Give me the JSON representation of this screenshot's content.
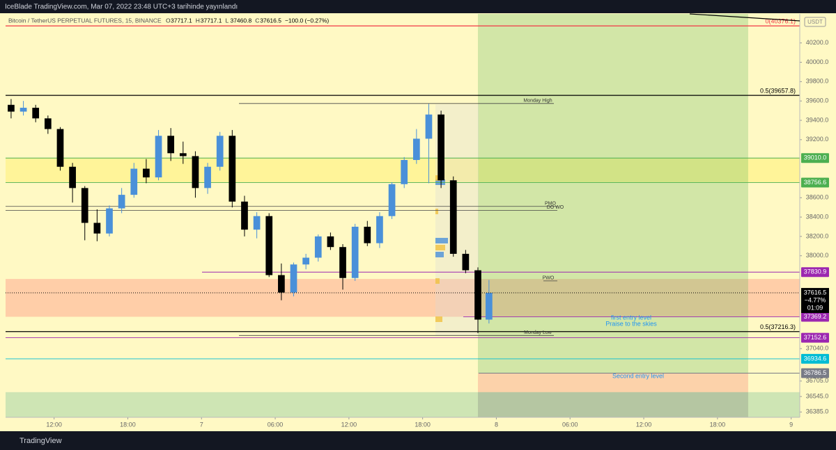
{
  "header": {
    "publisher": "IceBlade TradingView.com, Mar 07, 2022 23:48 UTC+3 tarihinde yayınlandı"
  },
  "footer": {
    "brand": "TradingView"
  },
  "chart_data": {
    "type": "candlestick",
    "title": "Bitcoin / TetherUS PERPETUAL FUTURES, 15, BINANCE",
    "ohlc": [
      {
        "label": "O",
        "value": 37717.1
      },
      {
        "label": "H",
        "value": 37717.1
      },
      {
        "label": "L",
        "value": 37460.8
      },
      {
        "label": "C",
        "value": 37616.5
      }
    ],
    "change": "−100.0 (−0.27%)",
    "currency": "USDT",
    "up_color": "#4a90d9",
    "down_color": "#000000",
    "x": [
      8.5,
      9.5,
      10.5,
      11.5,
      12.5,
      13.5,
      14.5,
      15.5,
      16.5,
      17.5,
      18.5,
      19.5,
      20.5,
      21.5,
      22.5,
      23.5,
      24.5,
      25.5,
      26.5,
      27.5,
      28.5,
      29.5,
      30.5,
      31.5,
      32.5,
      33.5,
      34.5,
      35.5,
      36.5,
      37.5,
      38.5,
      39.5,
      40.5,
      41.5,
      42.5,
      43.5,
      44.5,
      45.5,
      46.5,
      47.4
    ],
    "open": [
      39560,
      39490,
      39530,
      39420,
      39310,
      38920,
      38700,
      38340,
      38230,
      38490,
      38630,
      38900,
      38810,
      39240,
      39060,
      39030,
      38700,
      38920,
      39240,
      38560,
      38270,
      38410,
      37800,
      37620,
      37910,
      37980,
      38200,
      38090,
      37770,
      38300,
      38130,
      38410,
      38740,
      38990,
      39210,
      39460,
      38780,
      38020,
      37850,
      37340
    ],
    "high": [
      39620,
      39600,
      39560,
      39450,
      39330,
      38960,
      38720,
      38480,
      38520,
      38700,
      38960,
      39000,
      39300,
      39320,
      39180,
      39080,
      38960,
      39280,
      39300,
      38620,
      38450,
      38440,
      37920,
      37930,
      38020,
      38220,
      38240,
      38120,
      38330,
      38360,
      38450,
      38760,
      39020,
      39310,
      39570,
      39500,
      38820,
      38060,
      37880,
      37750
    ],
    "low": [
      39420,
      39450,
      39380,
      39260,
      38880,
      38550,
      38160,
      38150,
      38200,
      38440,
      38600,
      38750,
      38780,
      38980,
      38950,
      38600,
      38640,
      38880,
      38500,
      38200,
      38180,
      37780,
      37540,
      37580,
      37860,
      37940,
      38060,
      37650,
      37740,
      38100,
      38080,
      38380,
      38700,
      38950,
      38750,
      38700,
      37990,
      37820,
      37200,
      37300
    ],
    "close": [
      39490,
      39530,
      39420,
      39310,
      38920,
      38700,
      38340,
      38230,
      38490,
      38630,
      38900,
      38810,
      39240,
      39060,
      39030,
      38700,
      38920,
      39240,
      38560,
      38270,
      38410,
      37800,
      37620,
      37910,
      37980,
      38200,
      38090,
      37770,
      38300,
      38130,
      38410,
      38740,
      38990,
      39210,
      39460,
      38780,
      38020,
      37850,
      37340,
      37616.5
    ],
    "xlim": [
      8.05,
      72.7
    ],
    "xticks": [
      {
        "value": 12,
        "label": "12:00"
      },
      {
        "value": 18,
        "label": "18:00"
      },
      {
        "value": 24,
        "label": "7"
      },
      {
        "value": 30,
        "label": "06:00"
      },
      {
        "value": 36,
        "label": "12:00"
      },
      {
        "value": 42,
        "label": "18:00"
      },
      {
        "value": 48,
        "label": "8"
      },
      {
        "value": 54,
        "label": "06:00"
      },
      {
        "value": 60,
        "label": "12:00"
      },
      {
        "value": 66,
        "label": "18:00"
      },
      {
        "value": 72,
        "label": "9"
      }
    ],
    "ylim": [
      36330,
      40500
    ],
    "yticks": [
      {
        "value": 40200,
        "label": "40200.0"
      },
      {
        "value": 40000,
        "label": "40000.0"
      },
      {
        "value": 39800,
        "label": "39800.0"
      },
      {
        "value": 39600,
        "label": "39600.0"
      },
      {
        "value": 39400,
        "label": "39400.0"
      },
      {
        "value": 39200,
        "label": "39200.0"
      },
      {
        "value": 38600,
        "label": "38600.0"
      },
      {
        "value": 38400,
        "label": "38400.0"
      },
      {
        "value": 38200,
        "label": "38200.0"
      },
      {
        "value": 38000,
        "label": "38000.0"
      },
      {
        "value": 37040,
        "label": "37040.0"
      },
      {
        "value": 36705,
        "label": "36705.0"
      },
      {
        "value": 36545,
        "label": "36545.0"
      },
      {
        "value": 36385,
        "label": "36385.0"
      }
    ],
    "fib_levels": [
      {
        "value": 40376.1,
        "label": "0(40376.1)",
        "color": "#f23645"
      },
      {
        "value": 39657.8,
        "label": "0.5(39657.8)",
        "color": "#000000"
      },
      {
        "value": 37216.3,
        "label": "0.5(37216.3)",
        "color": "#000000"
      }
    ],
    "price_tags": [
      {
        "value": 39010.0,
        "label": "39010.0",
        "color": "#4caf50"
      },
      {
        "value": 38756.6,
        "label": "38756.6",
        "color": "#4caf50"
      },
      {
        "value": 37830.9,
        "label": "37830.9",
        "color": "#9c27b0"
      },
      {
        "value": 37369.2,
        "label": "37369.2",
        "color": "#9c27b0"
      },
      {
        "value": 37152.6,
        "label": "37152.6",
        "color": "#9c27b0"
      },
      {
        "value": 36934.6,
        "label": "36934.6",
        "color": "#00bcd4"
      },
      {
        "value": 36786.5,
        "label": "36786.5",
        "color": "#787b86"
      }
    ],
    "last_price": {
      "value": 37616.5,
      "label": "37616.5",
      "change": "−4.77%",
      "countdown": "01:09"
    },
    "drawn_levels": [
      {
        "value": 39574,
        "label": "Monday High"
      },
      {
        "value": 37176,
        "label": "Monday Low"
      },
      {
        "value": 38510,
        "label": "PMO"
      },
      {
        "value": 38470,
        "label": "DO  WO"
      },
      {
        "value": 37740,
        "label": "PWO"
      }
    ],
    "zones": [
      {
        "top": 39010.0,
        "bottom": 38756.6,
        "color": "#fff176"
      },
      {
        "top": 37760,
        "bottom": 37369.2,
        "color": "#ffab91"
      },
      {
        "top": 36590,
        "bottom": 36330,
        "color": "#a5d6a7"
      }
    ],
    "position": {
      "start": 46.5,
      "end": 68.5,
      "target": 40500,
      "entry": 36786.5,
      "stop": 36590,
      "profit_color": "#4caf50",
      "loss_color": "#f23645"
    },
    "notes": [
      "first entry level",
      "Praise to the skies",
      "Second entry level"
    ]
  }
}
